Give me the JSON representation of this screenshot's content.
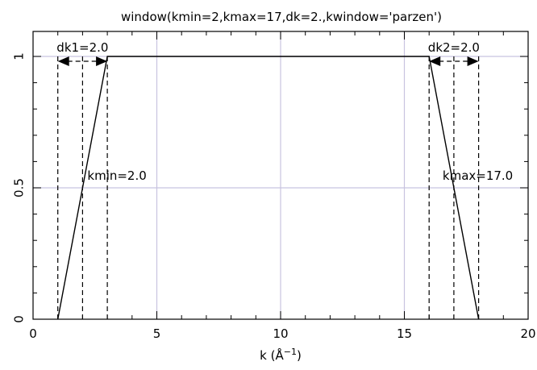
{
  "chart_data": {
    "type": "line",
    "title": "window(kmin=2,kmax=17,dk=2.,kwindow='parzen')",
    "xlabel_main": "k (Å",
    "xlabel_sup": "−1",
    "xlabel_close": ")",
    "ylabel": "",
    "xlim": [
      0,
      20
    ],
    "ylim": [
      0,
      1.05
    ],
    "grid": true,
    "xticks": [
      0,
      5,
      10,
      15,
      20
    ],
    "xtick_labels": [
      "0",
      "5",
      "10",
      "15",
      "20"
    ],
    "yticks": [
      0,
      0.5,
      1
    ],
    "ytick_labels": [
      "0",
      "0.5",
      "1"
    ],
    "series": [
      {
        "x": [
          1,
          3,
          16,
          18
        ],
        "y": [
          0,
          1,
          1,
          0
        ]
      }
    ],
    "vlines": [
      1,
      2,
      3,
      16,
      17,
      18
    ],
    "annotations": {
      "dk1": {
        "text": "dk1=2.0",
        "from": 1,
        "to": 3,
        "y": 1
      },
      "dk2": {
        "text": "dk2=2.0",
        "from": 16,
        "to": 18,
        "y": 1
      },
      "kmin": {
        "text": "kmin=2.0",
        "x": 2,
        "y": 0.53
      },
      "kmax": {
        "text": "kmax=17.0",
        "x": 17,
        "y": 0.53
      }
    },
    "colors": {
      "grid": "#c8c3e0",
      "line": "#000000"
    }
  }
}
